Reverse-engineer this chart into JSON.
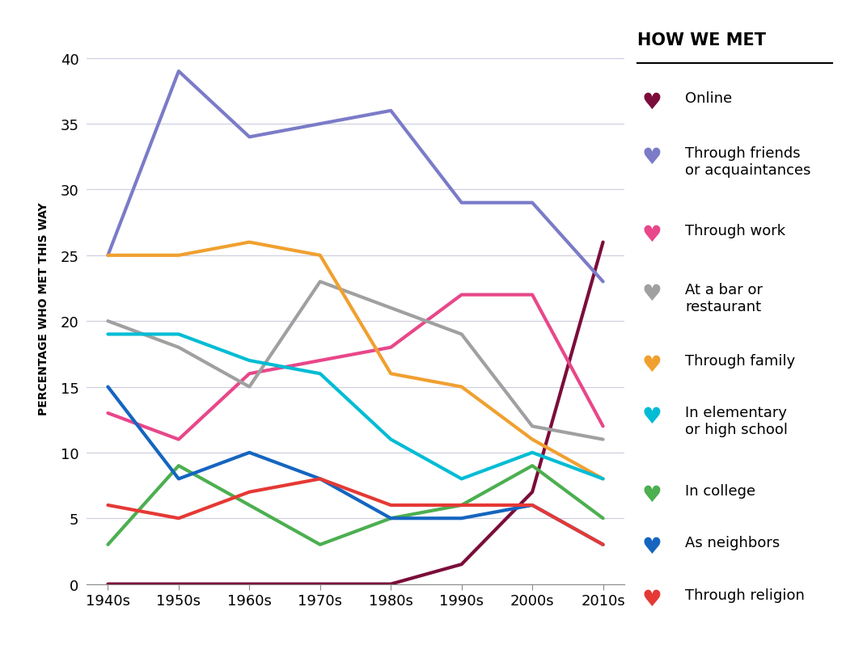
{
  "x_labels": [
    "1940s",
    "1950s",
    "1960s",
    "1970s",
    "1980s",
    "1990s",
    "2000s",
    "2010s"
  ],
  "series": {
    "Online": {
      "color": "#7B0D3A",
      "values": [
        0,
        0,
        0,
        0,
        0,
        1.5,
        7,
        26
      ],
      "linewidth": 3.0
    },
    "Through friends or acquaintances": {
      "color": "#7B7BC8",
      "values": [
        25,
        39,
        34,
        35,
        36,
        29,
        29,
        23
      ],
      "linewidth": 3.0
    },
    "Through work": {
      "color": "#E8478A",
      "values": [
        13,
        11,
        16,
        17,
        18,
        22,
        22,
        12
      ],
      "linewidth": 3.0
    },
    "At a bar or restaurant": {
      "color": "#A0A0A0",
      "values": [
        20,
        18,
        15,
        23,
        21,
        19,
        12,
        11
      ],
      "linewidth": 3.0
    },
    "Through family": {
      "color": "#F0A030",
      "values": [
        25,
        25,
        26,
        25,
        16,
        15,
        11,
        8
      ],
      "linewidth": 3.0
    },
    "In elementary or high school": {
      "color": "#00BCD4",
      "values": [
        19,
        19,
        17,
        16,
        11,
        8,
        10,
        8
      ],
      "linewidth": 3.0
    },
    "In college": {
      "color": "#4CAF50",
      "values": [
        3,
        9,
        6,
        3,
        5,
        6,
        9,
        5
      ],
      "linewidth": 3.0
    },
    "As neighbors": {
      "color": "#1565C0",
      "values": [
        15,
        8,
        10,
        8,
        5,
        5,
        6,
        3
      ],
      "linewidth": 3.0
    },
    "Through religion": {
      "color": "#E53935",
      "values": [
        6,
        5,
        7,
        8,
        6,
        6,
        6,
        3
      ],
      "linewidth": 3.0
    }
  },
  "legend_colors": [
    "#7B0D3A",
    "#7B7BC8",
    "#E8478A",
    "#A0A0A0",
    "#F0A030",
    "#00BCD4",
    "#4CAF50",
    "#1565C0",
    "#E53935"
  ],
  "legend_labels": [
    "Online",
    "Through friends\nor acquaintances",
    "Through work",
    "At a bar or\nrestaurant",
    "Through family",
    "In elementary\nor high school",
    "In college",
    "As neighbors",
    "Through religion"
  ],
  "title": "HOW WE MET",
  "ylabel": "PERCENTAGE WHO MET THIS WAY",
  "ylim": [
    0,
    42
  ],
  "yticks": [
    0,
    5,
    10,
    15,
    20,
    25,
    30,
    35,
    40
  ],
  "background_color": "#FFFFFF",
  "grid_color": "#CCCCDD",
  "axis_linecolor": "#888888"
}
